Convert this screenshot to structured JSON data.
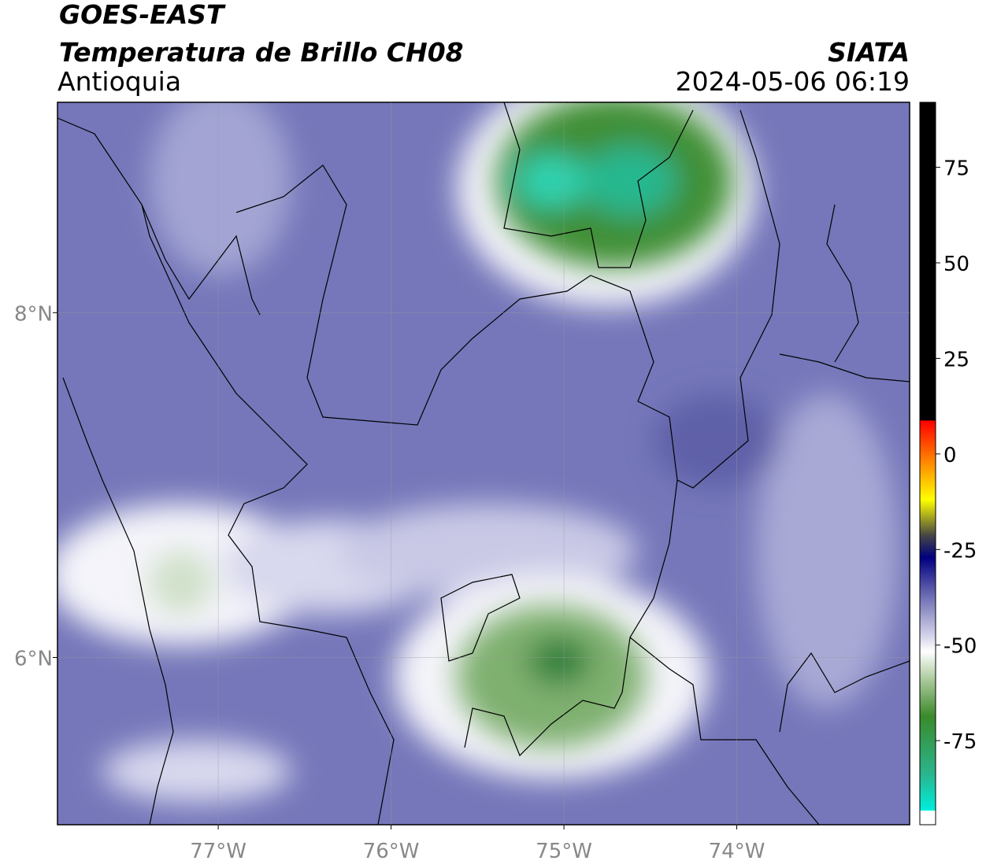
{
  "header": {
    "title": "GOES-EAST",
    "subtitle": "Temperatura de Brillo CH08",
    "region": "Antioquia",
    "source": "SIATA",
    "datetime": "2024-05-06 06:19"
  },
  "map": {
    "xlim": [
      -77.93,
      -73.0
    ],
    "ylim": [
      5.03,
      9.22
    ],
    "xticks": [
      {
        "value": -77,
        "label": "77°W"
      },
      {
        "value": -76,
        "label": "76°W"
      },
      {
        "value": -75,
        "label": "75°W"
      },
      {
        "value": -74,
        "label": "74°W"
      }
    ],
    "yticks": [
      {
        "value": 8,
        "label": "8°N"
      },
      {
        "value": 6,
        "label": "6°N"
      }
    ]
  },
  "colorbar": {
    "lim": [
      -97,
      92
    ],
    "ticks": [
      75,
      50,
      25,
      0,
      -25,
      -50,
      -75
    ]
  }
}
